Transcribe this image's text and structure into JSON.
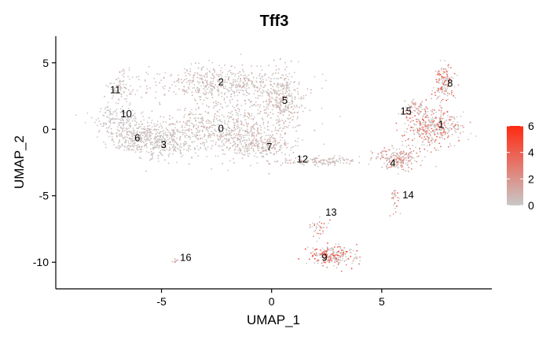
{
  "chart_data": {
    "type": "scatter",
    "title": "Tff3",
    "xlabel": "UMAP_1",
    "ylabel": "UMAP_2",
    "xlim": [
      -9.8,
      10
    ],
    "ylim": [
      -12,
      7
    ],
    "xticks": [
      -5,
      0,
      5
    ],
    "yticks": [
      5,
      0,
      -5,
      -10
    ],
    "grid": false,
    "legend": {
      "placement": "right",
      "min": 0,
      "max": 6,
      "ticks": [
        0,
        2,
        4,
        6
      ],
      "low_color": "#c8c8c8",
      "high_color": "#ff2a12"
    },
    "clusters": [
      {
        "label": "0",
        "x": -2.3,
        "y": 0.0,
        "sx": 2.3,
        "sy": 1.4,
        "n": 700,
        "expr": 0.9
      },
      {
        "label": "1",
        "x": 7.3,
        "y": 0.2,
        "sx": 0.9,
        "sy": 1.0,
        "n": 380,
        "expr": 3.4
      },
      {
        "label": "2",
        "x": -2.2,
        "y": 3.4,
        "sx": 2.1,
        "sy": 0.9,
        "n": 520,
        "expr": 0.8
      },
      {
        "label": "3",
        "x": -5.0,
        "y": -0.8,
        "sx": 1.0,
        "sy": 0.9,
        "n": 280,
        "expr": 0.6
      },
      {
        "label": "4",
        "x": 5.8,
        "y": -2.2,
        "sx": 0.7,
        "sy": 0.5,
        "n": 200,
        "expr": 2.5
      },
      {
        "label": "5",
        "x": 0.5,
        "y": 2.2,
        "sx": 0.6,
        "sy": 1.3,
        "n": 260,
        "expr": 1.0
      },
      {
        "label": "6",
        "x": -6.4,
        "y": -0.6,
        "sx": 0.7,
        "sy": 0.8,
        "n": 200,
        "expr": 0.5
      },
      {
        "label": "7",
        "x": -0.5,
        "y": -1.2,
        "sx": 0.9,
        "sy": 0.6,
        "n": 200,
        "expr": 1.2
      },
      {
        "label": "8",
        "x": 7.8,
        "y": 3.5,
        "sx": 0.3,
        "sy": 0.9,
        "n": 130,
        "expr": 4.0
      },
      {
        "label": "9",
        "x": 2.8,
        "y": -9.5,
        "sx": 0.7,
        "sy": 0.5,
        "n": 220,
        "expr": 4.3
      },
      {
        "label": "10",
        "x": -7.0,
        "y": 0.8,
        "sx": 0.7,
        "sy": 0.7,
        "n": 140,
        "expr": 0.4
      },
      {
        "label": "11",
        "x": -6.8,
        "y": 3.2,
        "sx": 0.4,
        "sy": 0.7,
        "n": 80,
        "expr": 0.6
      },
      {
        "label": "12",
        "x": 2.3,
        "y": -2.4,
        "sx": 1.2,
        "sy": 0.2,
        "n": 140,
        "expr": 1.1
      },
      {
        "label": "13",
        "x": 2.1,
        "y": -7.3,
        "sx": 0.3,
        "sy": 0.5,
        "n": 35,
        "expr": 3.3
      },
      {
        "label": "14",
        "x": 5.6,
        "y": -5.3,
        "sx": 0.12,
        "sy": 0.6,
        "n": 30,
        "expr": 3.2
      },
      {
        "label": "15",
        "x": 6.6,
        "y": 1.6,
        "sx": 0.4,
        "sy": 0.4,
        "n": 55,
        "expr": 2.4
      },
      {
        "label": "16",
        "x": -4.4,
        "y": -9.9,
        "sx": 0.12,
        "sy": 0.08,
        "n": 8,
        "expr": 1.5
      }
    ],
    "label_positions": [
      {
        "label": "0",
        "x": -2.3,
        "y": 0.1
      },
      {
        "label": "1",
        "x": 7.7,
        "y": 0.4
      },
      {
        "label": "2",
        "x": -2.3,
        "y": 3.6
      },
      {
        "label": "3",
        "x": -4.9,
        "y": -1.1
      },
      {
        "label": "4",
        "x": 5.5,
        "y": -2.5
      },
      {
        "label": "5",
        "x": 0.6,
        "y": 2.2
      },
      {
        "label": "6",
        "x": -6.1,
        "y": -0.6
      },
      {
        "label": "7",
        "x": -0.1,
        "y": -1.3
      },
      {
        "label": "8",
        "x": 8.1,
        "y": 3.5
      },
      {
        "label": "9",
        "x": 2.4,
        "y": -9.6
      },
      {
        "label": "10",
        "x": -6.6,
        "y": 1.2
      },
      {
        "label": "11",
        "x": -7.1,
        "y": 3.0
      },
      {
        "label": "12",
        "x": 1.4,
        "y": -2.2
      },
      {
        "label": "13",
        "x": 2.7,
        "y": -6.2
      },
      {
        "label": "14",
        "x": 6.2,
        "y": -4.9
      },
      {
        "label": "15",
        "x": 6.1,
        "y": 1.4
      },
      {
        "label": "16",
        "x": -3.9,
        "y": -9.6
      }
    ]
  }
}
